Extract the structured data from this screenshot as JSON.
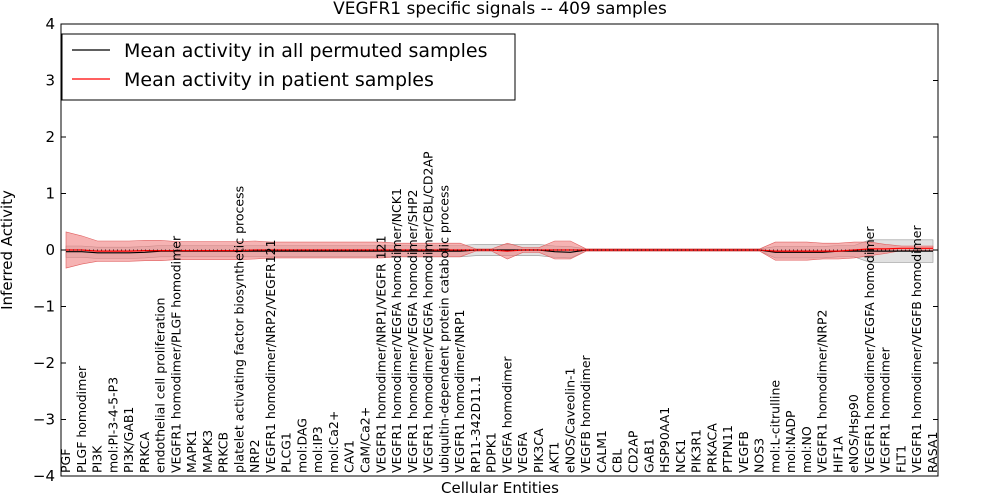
{
  "chart_data": {
    "type": "line",
    "title": "VEGFR1 specific signals -- 409 samples",
    "xlabel": "Cellular Entities",
    "ylabel": "Inferred Activity",
    "ylim": [
      -4,
      4
    ],
    "yticks": [
      -4,
      -3,
      -2,
      -1,
      0,
      1,
      2,
      3,
      4
    ],
    "ytick_labels": [
      "−4",
      "−3",
      "−2",
      "−1",
      "0",
      "1",
      "2",
      "3",
      "4"
    ],
    "grid": false,
    "legend_position": "top-left",
    "categories": [
      "PGF",
      "PLGF homodimer",
      "PI3K",
      "mol:PI-3-4-5-P3",
      "PI3K/GAB1",
      "PRKCA",
      "endothelial cell proliferation",
      "VEGFR1 homodimer/PLGF homodimer",
      "MAPK1",
      "MAPK3",
      "PRKCB",
      "platelet activating factor biosynthetic process",
      "NRP2",
      "VEGFR1 homodimer/NRP2/VEGFR121",
      "PLCG1",
      "mol:DAG",
      "mol:IP3",
      "mol:Ca2+",
      "CAV1",
      "CaM/Ca2+",
      "VEGFR1 homodimer/NRP1/VEGFR 121",
      "VEGFR1 homodimer/VEGFA homodimer/NCK1",
      "VEGFR1 homodimer/VEGFA homodimer/SHP2",
      "VEGFR1 homodimer/VEGFA homodimer/CBL/CD2AP",
      "ubiquitin-dependent protein catabolic process",
      "VEGFR1 homodimer/NRP1",
      "RP11-342D11.1",
      "PDPK1",
      "VEGFA homodimer",
      "VEGFA",
      "PIK3CA",
      "AKT1",
      "eNOS/Caveolin-1",
      "VEGFB homodimer",
      "CALM1",
      "CBL",
      "CD2AP",
      "GAB1",
      "HSP90AA1",
      "NCK1",
      "PIK3R1",
      "PRKACA",
      "PTPN11",
      "VEGFB",
      "NOS3",
      "mol:L-citrulline",
      "mol:NADP",
      "mol:NO",
      "VEGFR1 homodimer/NRP2",
      "HIF1A",
      "eNOS/Hsp90",
      "VEGFR1 homodimer/VEGFA homodimer",
      "VEGFR1 homodimer",
      "FLT1",
      "VEGFR1 homodimer/VEGFB homodimer",
      "RASA1"
    ],
    "series": [
      {
        "name": "Mean activity in all permuted samples",
        "color": "#000000",
        "band_color": "#bdbdbd",
        "values": [
          -0.03,
          -0.03,
          -0.05,
          -0.05,
          -0.05,
          -0.04,
          -0.02,
          -0.02,
          -0.02,
          -0.02,
          -0.02,
          -0.02,
          -0.02,
          -0.02,
          -0.02,
          -0.02,
          -0.02,
          -0.02,
          -0.02,
          -0.02,
          -0.02,
          -0.02,
          -0.02,
          -0.02,
          -0.02,
          -0.02,
          0.0,
          0.0,
          0.0,
          0.0,
          0.0,
          -0.03,
          -0.04,
          0.0,
          0.0,
          0.0,
          0.0,
          0.0,
          0.0,
          0.0,
          0.0,
          0.0,
          0.0,
          0.0,
          0.0,
          -0.04,
          -0.04,
          -0.04,
          -0.04,
          -0.02,
          -0.02,
          -0.02,
          -0.02,
          -0.02,
          -0.02,
          -0.02
        ],
        "band_halfwidth": [
          0.1,
          0.1,
          0.1,
          0.1,
          0.1,
          0.1,
          0.1,
          0.1,
          0.1,
          0.1,
          0.1,
          0.1,
          0.1,
          0.1,
          0.1,
          0.1,
          0.1,
          0.1,
          0.1,
          0.1,
          0.1,
          0.1,
          0.1,
          0.1,
          0.1,
          0.1,
          0.1,
          0.1,
          0.1,
          0.1,
          0.1,
          0.1,
          0.1,
          0.02,
          0.02,
          0.02,
          0.02,
          0.02,
          0.02,
          0.02,
          0.02,
          0.02,
          0.02,
          0.02,
          0.02,
          0.1,
          0.1,
          0.1,
          0.1,
          0.1,
          0.1,
          0.2,
          0.2,
          0.2,
          0.2,
          0.2
        ]
      },
      {
        "name": "Mean activity in patient samples",
        "color": "#ff0000",
        "band_color": "#f08080",
        "values": [
          0.0,
          0.0,
          -0.02,
          -0.02,
          -0.02,
          -0.01,
          -0.01,
          -0.01,
          -0.01,
          -0.01,
          -0.01,
          -0.01,
          0.0,
          0.0,
          0.0,
          0.0,
          0.0,
          0.0,
          0.0,
          0.0,
          0.0,
          0.0,
          0.0,
          0.0,
          0.0,
          0.0,
          0.0,
          0.0,
          -0.02,
          0.0,
          0.0,
          0.0,
          0.0,
          0.0,
          0.0,
          0.0,
          0.0,
          0.0,
          0.0,
          0.0,
          0.0,
          0.0,
          0.0,
          0.0,
          0.0,
          -0.02,
          -0.02,
          -0.02,
          -0.02,
          -0.02,
          0.0,
          0.02,
          0.02,
          0.03,
          0.03,
          0.03
        ],
        "band_halfwidth": [
          0.32,
          0.25,
          0.18,
          0.18,
          0.18,
          0.18,
          0.18,
          0.16,
          0.16,
          0.16,
          0.16,
          0.16,
          0.16,
          0.14,
          0.14,
          0.14,
          0.14,
          0.14,
          0.14,
          0.14,
          0.14,
          0.12,
          0.12,
          0.12,
          0.12,
          0.12,
          0.02,
          0.02,
          0.14,
          0.04,
          0.04,
          0.16,
          0.16,
          0.02,
          0.02,
          0.02,
          0.02,
          0.02,
          0.02,
          0.02,
          0.02,
          0.02,
          0.02,
          0.02,
          0.02,
          0.16,
          0.16,
          0.16,
          0.14,
          0.14,
          0.14,
          0.12,
          0.08,
          0.04,
          0.04,
          0.04
        ]
      }
    ]
  }
}
